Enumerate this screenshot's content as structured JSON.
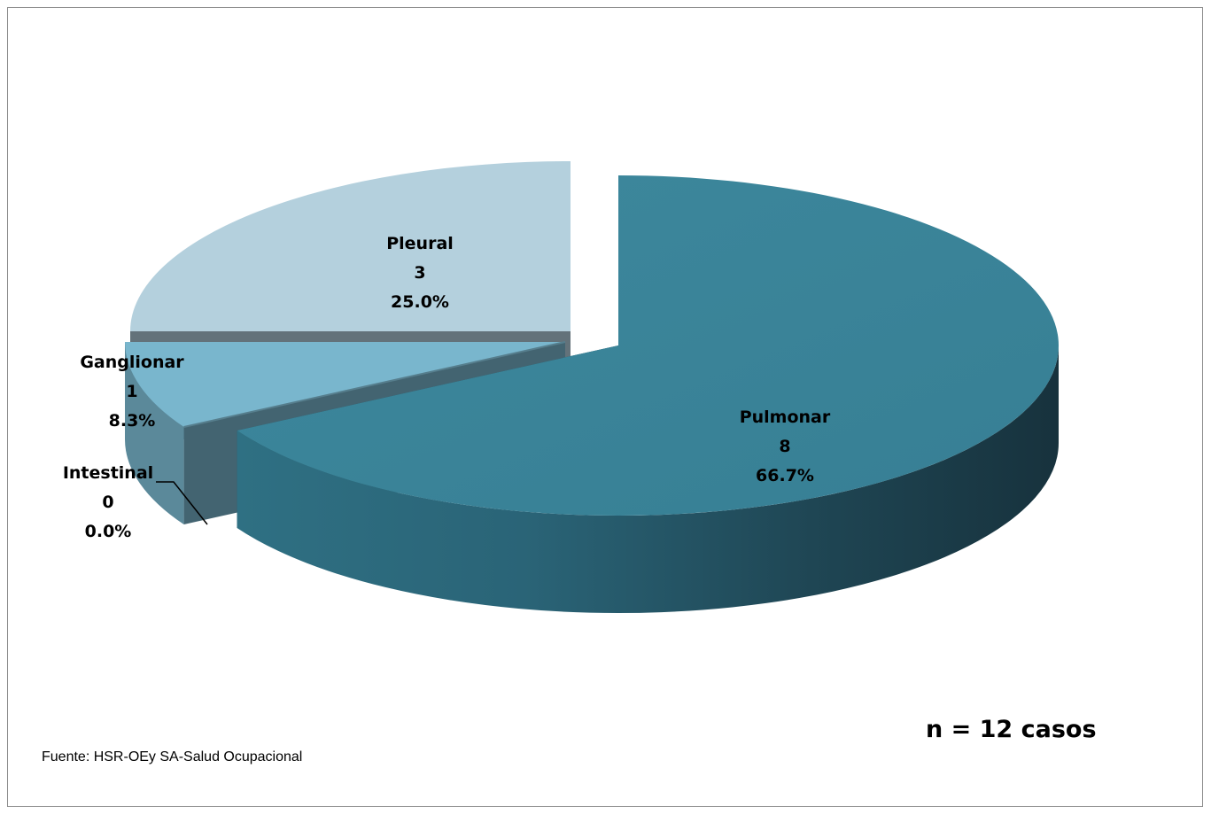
{
  "chart_data": {
    "type": "pie",
    "slices": [
      {
        "label": "Pulmonar",
        "value": 8,
        "percent": "66.7%",
        "color": "#3a8499"
      },
      {
        "label": "Intestinal",
        "value": 0,
        "percent": "0.0%",
        "color": "#6c9db0"
      },
      {
        "label": "Ganglionar",
        "value": 1,
        "percent": "8.3%",
        "color": "#79b6cd"
      },
      {
        "label": "Pleural",
        "value": 3,
        "percent": "25.0%",
        "color": "#b4d0dd"
      }
    ]
  },
  "labels": {
    "pulmonar": {
      "name": "Pulmonar",
      "value": "8",
      "percent": "66.7%"
    },
    "pleural": {
      "name": "Pleural",
      "value": "3",
      "percent": "25.0%"
    },
    "ganglionar": {
      "name": "Ganglionar",
      "value": "1",
      "percent": "8.3%"
    },
    "intestinal": {
      "name": "Intestinal",
      "value": "0",
      "percent": "0.0%"
    }
  },
  "notes": {
    "sample": "n = 12 casos",
    "source": "Fuente: HSR-OEy SA-Salud Ocupacional"
  }
}
